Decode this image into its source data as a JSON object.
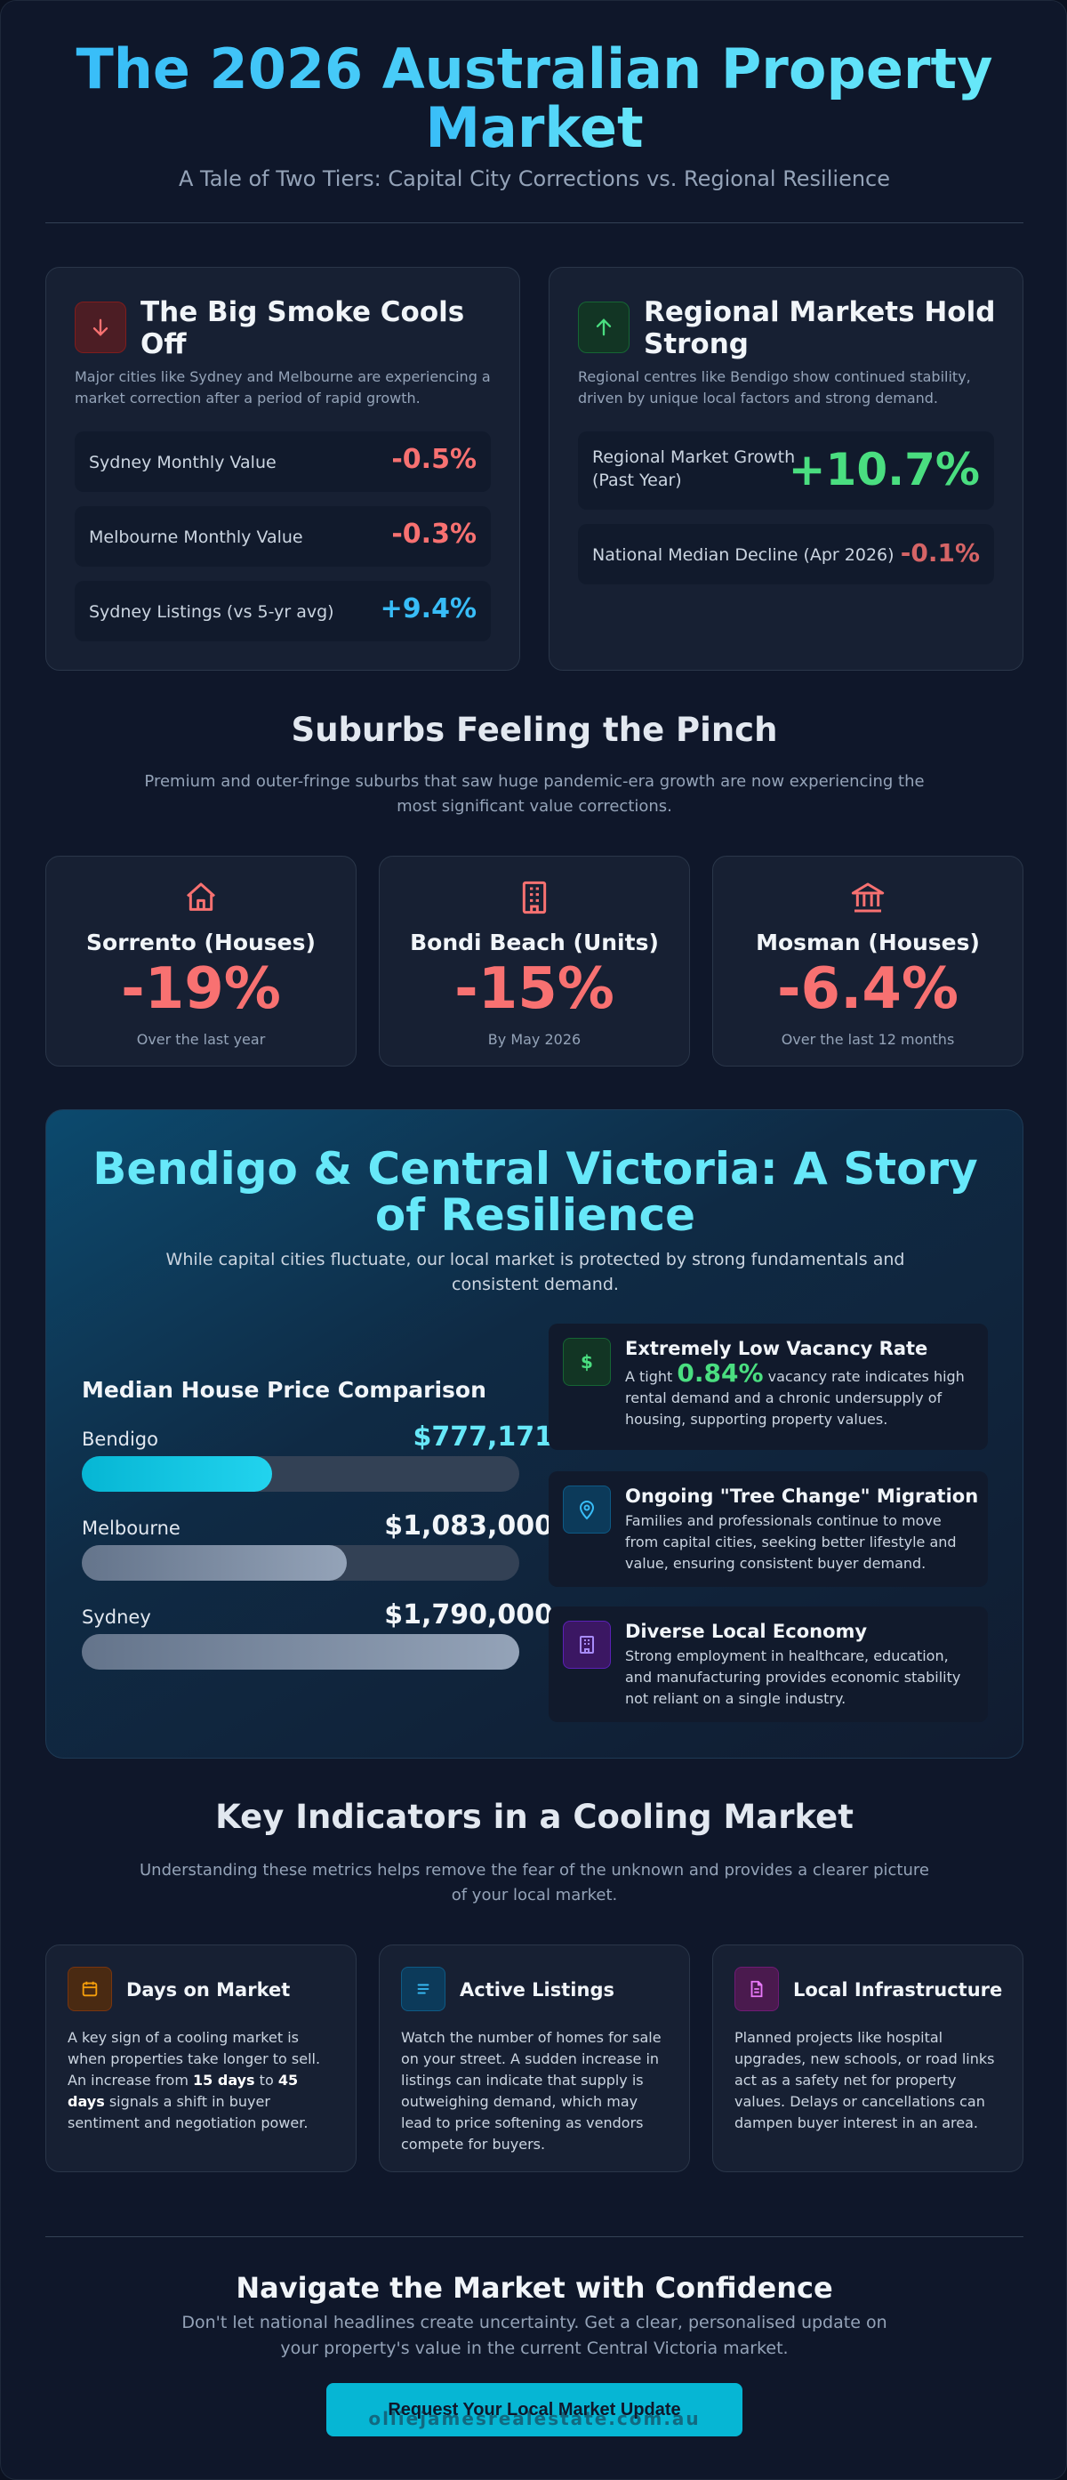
{
  "hero": {
    "title_line1": "The 2026 Australian Property",
    "title_line2": "Market",
    "subtitle": "A Tale of Two Tiers: Capital City Corrections vs. Regional Resilience"
  },
  "colors": {
    "accent": "#38bdf8",
    "negative": "#f87171",
    "positive": "#4ade80",
    "cta": "#06b6d4"
  },
  "capital_card": {
    "icon": "arrow-down-icon",
    "title_line1": "The Big Smoke Cools",
    "title_line2": "Off",
    "description": "Major cities like Sydney and Melbourne are experiencing a market correction after a period of rapid growth.",
    "stats": [
      {
        "label": "Sydney Monthly Value",
        "value": "-0.5%"
      },
      {
        "label": "Melbourne Monthly Value",
        "value": "-0.3%"
      },
      {
        "label": "Sydney Listings (vs 5-yr avg)",
        "value": "+9.4%"
      }
    ]
  },
  "regional_card": {
    "icon": "arrow-up-icon",
    "title_line1": "Regional Markets Hold",
    "title_line2": "Strong",
    "description": "Regional centres like Bendigo show continued stability, driven by unique local factors and strong demand.",
    "stats": [
      {
        "label_line1": "Regional Market Growth",
        "label_line2": "(Past Year)",
        "value": "+10.7%"
      },
      {
        "label": "National Median Decline (Apr 2026)",
        "value": "-0.1%"
      }
    ]
  },
  "suburbs": {
    "title": "Suburbs Feeling the Pinch",
    "subtitle": "Premium and outer-fringe suburbs that saw huge pandemic-era growth are now experiencing the most significant value corrections.",
    "items": [
      {
        "icon": "house-icon",
        "name": "Sorrento (Houses)",
        "change": "-19%",
        "note": "Over the last year"
      },
      {
        "icon": "building-icon",
        "name": "Bondi Beach (Units)",
        "change": "-15%",
        "note": "By May 2026"
      },
      {
        "icon": "bank-icon",
        "name": "Mosman (Houses)",
        "change": "-6.4%",
        "note": "Over the last 12 months"
      }
    ]
  },
  "bendigo": {
    "title_line1": "Bendigo & Central Victoria: A Story",
    "title_line2": "of Resilience",
    "subtitle": "While capital cities fluctuate, our local market is protected by strong fundamentals and consistent demand.",
    "comparison_title": "Median House Price Comparison",
    "prices": [
      {
        "city": "Bendigo",
        "price": "$777,171",
        "value": 777171
      },
      {
        "city": "Melbourne",
        "price": "$1,083,000",
        "value": 1083000
      },
      {
        "city": "Sydney",
        "price": "$1,790,000",
        "value": 1790000
      }
    ],
    "features": [
      {
        "icon": "dollar-icon",
        "title": "Extremely Low Vacancy Rate",
        "text_prefix": "A tight",
        "highlight": "0.84%",
        "text": "vacancy rate indicates high rental demand and a chronic undersupply of housing, supporting property values."
      },
      {
        "icon": "map-pin-icon",
        "title": "Ongoing \"Tree Change\" Migration",
        "text": "Families and professionals continue to move from capital cities, seeking better lifestyle and value, ensuring consistent buyer demand."
      },
      {
        "icon": "office-building-icon",
        "title": "Diverse Local Economy",
        "text": "Strong employment in healthcare, education, and manufacturing provides economic stability not reliant on a single industry."
      }
    ]
  },
  "indicators": {
    "title": "Key Indicators in a Cooling Market",
    "subtitle": "Understanding these metrics helps remove the fear of the unknown and provides a clearer picture of your local market.",
    "items": [
      {
        "icon": "calendar-icon",
        "title": "Days on Market",
        "text_a": "A key sign of a cooling market is when properties take longer to sell. An increase from",
        "bold_a": "15 days",
        "text_b": "to",
        "bold_b": "45 days",
        "text_c": "signals a shift in buyer sentiment and negotiation power."
      },
      {
        "icon": "list-icon",
        "title": "Active Listings",
        "text": "Watch the number of homes for sale on your street. A sudden increase in listings can indicate that supply is outweighing demand, which may lead to price softening as vendors compete for buyers."
      },
      {
        "icon": "document-icon",
        "title": "Local Infrastructure",
        "text": "Planned projects like hospital upgrades, new schools, or road links act as a safety net for property values. Delays or cancellations can dampen buyer interest in an area."
      }
    ]
  },
  "cta": {
    "title": "Navigate the Market with Confidence",
    "subtitle": "Don't let national headlines create uncertainty. Get a clear, personalised update on your property's value in the current Central Victoria market.",
    "button_label": "Request Your Local Market Update",
    "watermark": "olliejamesrealestate.com.au"
  }
}
